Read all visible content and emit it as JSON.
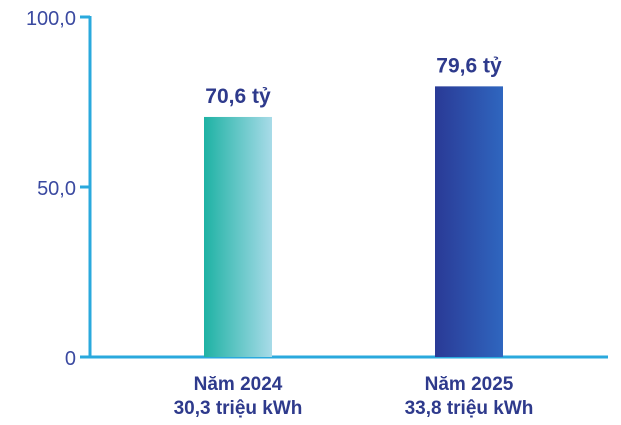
{
  "chart_data": {
    "type": "bar",
    "categories": [
      "Năm 2024",
      "Năm 2025"
    ],
    "category_sublabels": [
      "30,3 triệu kWh",
      "33,8 triệu kWh"
    ],
    "values": [
      70.6,
      79.6
    ],
    "data_labels": [
      "70,6 tỷ",
      "79,6 tỷ"
    ],
    "yticks": [
      "100,0",
      "50,0",
      "0"
    ],
    "ylim": [
      0,
      100
    ],
    "grid": false,
    "colors": {
      "axis": "#2aa9dd",
      "bar_2024": [
        "#1eb2a4",
        "#a8dbe8"
      ],
      "bar_2025": [
        "#2a3a96",
        "#2f66bf"
      ],
      "text": "#2e3a8c"
    }
  }
}
